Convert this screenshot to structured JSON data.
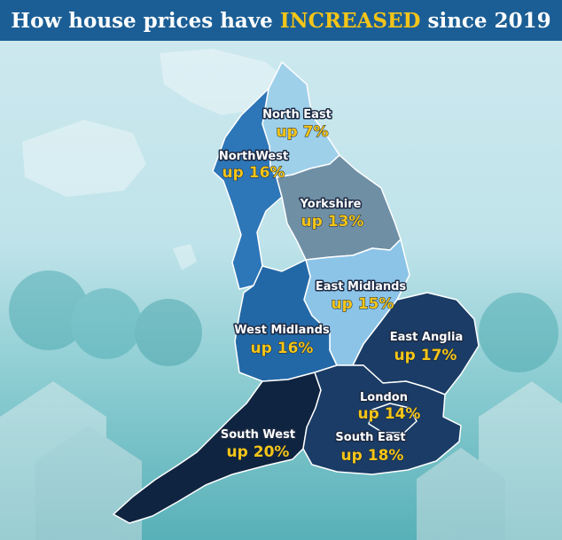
{
  "header": {
    "title_prefix": "How house prices have ",
    "title_highlight": "INCREASED",
    "title_suffix": " since 2019"
  },
  "colors": {
    "banner": "#1b5e95",
    "highlight": "#f5c518",
    "north_east": "#9fd0ea",
    "north_west": "#2d76b8",
    "yorkshire": "#6f8fa5",
    "east_midlands": "#8cc4e8",
    "west_midlands": "#2368a6",
    "east_anglia": "#1a3c66",
    "london": "#1a3c66",
    "south_east": "#1a3c66",
    "south_west": "#0f2440"
  },
  "regions": [
    {
      "key": "north_east",
      "name": "North East",
      "change": "up 7%"
    },
    {
      "key": "north_west",
      "name": "NorthWest",
      "change": "up 16%"
    },
    {
      "key": "yorkshire",
      "name": "Yorkshire",
      "change": "up 13%"
    },
    {
      "key": "east_midlands",
      "name": "East Midlands",
      "change": "up 15%"
    },
    {
      "key": "west_midlands",
      "name": "West Midlands",
      "change": "up 16%"
    },
    {
      "key": "east_anglia",
      "name": "East Anglia",
      "change": "up 17%"
    },
    {
      "key": "london",
      "name": "London",
      "change": "up 14%"
    },
    {
      "key": "south_west",
      "name": "South West",
      "change": "up 20%"
    },
    {
      "key": "south_east",
      "name": "South East",
      "change": "up 18%"
    }
  ]
}
